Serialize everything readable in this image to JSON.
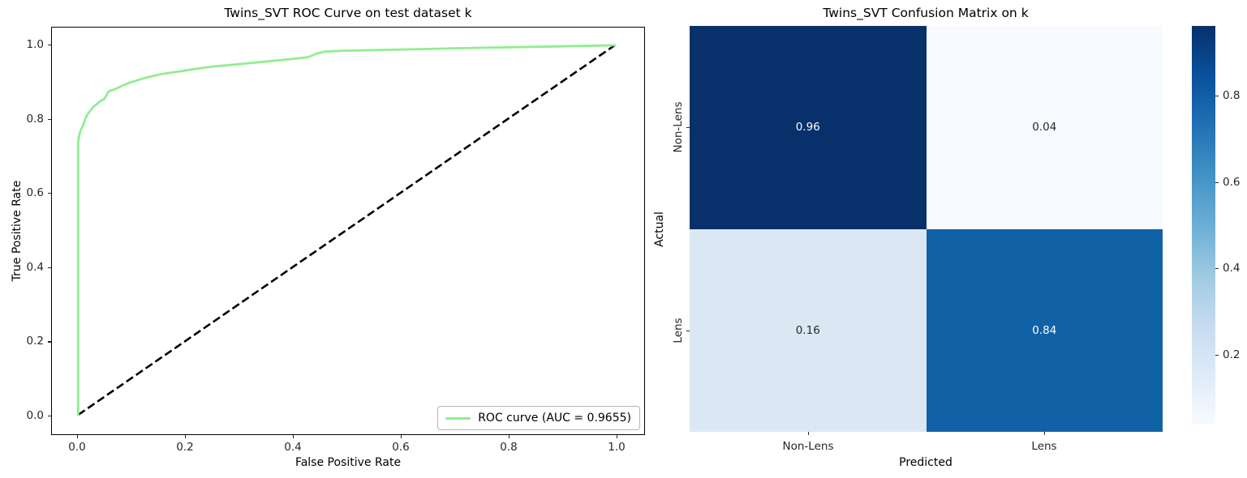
{
  "chart_data": [
    {
      "type": "line",
      "title": "Twins_SVT ROC Curve on test dataset k",
      "xlabel": "False Positive Rate",
      "ylabel": "True Positive Rate",
      "xlim": [
        0,
        1
      ],
      "ylim": [
        0,
        1
      ],
      "x_ticks": [
        "0.0",
        "0.2",
        "0.4",
        "0.6",
        "0.8",
        "1.0"
      ],
      "y_ticks": [
        "0.0",
        "0.2",
        "0.4",
        "0.6",
        "0.8",
        "1.0"
      ],
      "grid": false,
      "legend_position": "lower right",
      "legend_label": "ROC curve (AUC = 0.9655)",
      "auc": 0.9655,
      "diagonal": {
        "from": [
          0,
          0
        ],
        "to": [
          1,
          1
        ],
        "color": "#000000",
        "style": "dashed"
      },
      "series": [
        {
          "name": "ROC curve",
          "color": "#90ee90",
          "points": [
            [
              0.0,
              0.0
            ],
            [
              0.0,
              0.74
            ],
            [
              0.002,
              0.755
            ],
            [
              0.004,
              0.768
            ],
            [
              0.007,
              0.776
            ],
            [
              0.01,
              0.786
            ],
            [
              0.013,
              0.8
            ],
            [
              0.017,
              0.812
            ],
            [
              0.022,
              0.822
            ],
            [
              0.028,
              0.833
            ],
            [
              0.035,
              0.841
            ],
            [
              0.04,
              0.848
            ],
            [
              0.048,
              0.854
            ],
            [
              0.052,
              0.862
            ],
            [
              0.056,
              0.874
            ],
            [
              0.06,
              0.877
            ],
            [
              0.068,
              0.881
            ],
            [
              0.083,
              0.891
            ],
            [
              0.098,
              0.9
            ],
            [
              0.128,
              0.913
            ],
            [
              0.158,
              0.923
            ],
            [
              0.188,
              0.929
            ],
            [
              0.218,
              0.936
            ],
            [
              0.248,
              0.942
            ],
            [
              0.298,
              0.949
            ],
            [
              0.349,
              0.956
            ],
            [
              0.399,
              0.963
            ],
            [
              0.429,
              0.968
            ],
            [
              0.445,
              0.978
            ],
            [
              0.46,
              0.983
            ],
            [
              0.49,
              0.985
            ],
            [
              0.55,
              0.987
            ],
            [
              0.62,
              0.989
            ],
            [
              0.7,
              0.992
            ],
            [
              0.78,
              0.994
            ],
            [
              0.86,
              0.996
            ],
            [
              0.93,
              0.998
            ],
            [
              1.0,
              1.0
            ]
          ]
        }
      ]
    },
    {
      "type": "heatmap",
      "title": "Twins_SVT Confusion Matrix on k",
      "xlabel": "Predicted",
      "ylabel": "Actual",
      "x_categories": [
        "Non-Lens",
        "Lens"
      ],
      "y_categories": [
        "Non-Lens",
        "Lens"
      ],
      "values": [
        [
          0.96,
          0.04
        ],
        [
          0.16,
          0.84
        ]
      ],
      "cell_labels": [
        [
          "0.96",
          "0.04"
        ],
        [
          "0.16",
          "0.84"
        ]
      ],
      "cell_colors": [
        [
          "#08306b",
          "#f7fbff"
        ],
        [
          "#dbe8f4",
          "#1161a7"
        ]
      ],
      "cell_text_colors": [
        [
          "#ffffff",
          "#262626"
        ],
        [
          "#262626",
          "#ffffff"
        ]
      ],
      "colormap": "Blues",
      "colorbar": {
        "ticks": [
          "0.2",
          "0.4",
          "0.6",
          "0.8"
        ],
        "vmin": 0.04,
        "vmax": 0.96,
        "gradient": [
          "#f7fbff",
          "#deebf7",
          "#c6dbef",
          "#9ecae1",
          "#6baed6",
          "#4292c6",
          "#2171b5",
          "#08519c",
          "#08306b"
        ]
      }
    }
  ]
}
